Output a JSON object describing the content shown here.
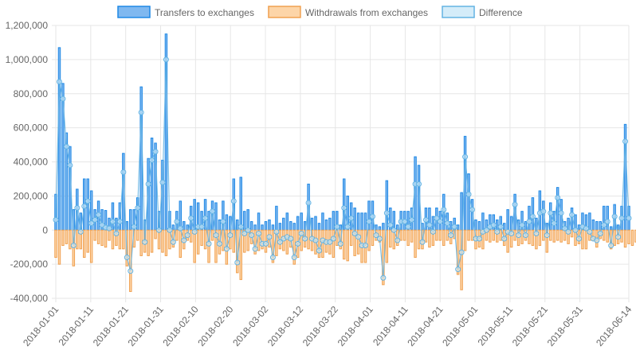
{
  "chart_data": {
    "type": "bar",
    "legend_position": "top",
    "grid": true,
    "ylim": [
      -400000,
      1200000
    ],
    "y_ticks": [
      1200000,
      1000000,
      800000,
      600000,
      400000,
      200000,
      0,
      -200000,
      -400000
    ],
    "y_tick_labels": [
      "1,200,000",
      "1,000,000",
      "800,000",
      "600,000",
      "400,000",
      "200,000",
      "0",
      "-200,000",
      "-400,000"
    ],
    "x_tick_labels": [
      "2018-01-01",
      "2018-01-11",
      "2018-01-21",
      "2018-01-31",
      "2018-02-10",
      "2018-02-20",
      "2018-03-02",
      "2018-03-12",
      "2018-03-22",
      "2018-04-01",
      "2018-04-11",
      "2018-04-21",
      "2018-05-01",
      "2018-05-11",
      "2018-05-21",
      "2018-05-31",
      "2018-06-14"
    ],
    "x_tick_days": [
      0,
      10,
      20,
      30,
      40,
      50,
      60,
      70,
      80,
      90,
      100,
      110,
      120,
      130,
      140,
      150,
      164
    ],
    "start_date": "2018-01-01",
    "end_date": "2018-06-14",
    "series": [
      {
        "name": "Transfers to exchanges",
        "color": "#1e88e5",
        "fill": "#7fb8f0",
        "values": [
          210000,
          1070000,
          860000,
          570000,
          490000,
          120000,
          240000,
          100000,
          300000,
          300000,
          230000,
          120000,
          170000,
          120000,
          115000,
          70000,
          160000,
          70000,
          160000,
          450000,
          50000,
          120000,
          120000,
          190000,
          840000,
          60000,
          420000,
          540000,
          510000,
          110000,
          410000,
          1150000,
          110000,
          30000,
          110000,
          170000,
          50000,
          30000,
          140000,
          180000,
          160000,
          110000,
          180000,
          110000,
          170000,
          160000,
          60000,
          170000,
          90000,
          80000,
          300000,
          60000,
          310000,
          110000,
          120000,
          50000,
          30000,
          100000,
          30000,
          50000,
          60000,
          30000,
          140000,
          40000,
          70000,
          100000,
          50000,
          40000,
          80000,
          100000,
          50000,
          270000,
          70000,
          80000,
          40000,
          100000,
          60000,
          70000,
          110000,
          110000,
          30000,
          300000,
          200000,
          160000,
          130000,
          100000,
          100000,
          100000,
          170000,
          170000,
          30000,
          20000,
          40000,
          290000,
          130000,
          110000,
          30000,
          110000,
          110000,
          110000,
          130000,
          430000,
          380000,
          40000,
          130000,
          130000,
          80000,
          130000,
          110000,
          210000,
          100000,
          50000,
          70000,
          30000,
          220000,
          550000,
          330000,
          180000,
          60000,
          50000,
          100000,
          60000,
          90000,
          90000,
          60000,
          80000,
          40000,
          120000,
          80000,
          210000,
          60000,
          110000,
          50000,
          140000,
          190000,
          70000,
          230000,
          170000,
          40000,
          160000,
          110000,
          250000,
          180000,
          50000,
          70000,
          130000,
          90000,
          30000,
          100000,
          90000,
          100000,
          60000,
          50000,
          50000,
          140000,
          140000,
          20000,
          150000,
          30000,
          140000,
          620000,
          140000
        ]
      },
      {
        "name": "Withdrawals from exchanges",
        "color": "#f0a050",
        "fill": "#fdd5a8",
        "values": [
          -160000,
          -200000,
          -90000,
          -80000,
          -110000,
          -210000,
          -110000,
          -110000,
          -160000,
          -130000,
          -190000,
          -60000,
          -80000,
          -90000,
          -100000,
          -60000,
          -110000,
          -90000,
          -110000,
          -110000,
          -210000,
          -360000,
          -100000,
          -60000,
          -150000,
          -130000,
          -150000,
          -130000,
          -50000,
          -110000,
          -130000,
          -150000,
          -110000,
          -100000,
          -60000,
          -160000,
          -110000,
          -60000,
          -70000,
          -190000,
          -140000,
          -90000,
          -110000,
          -190000,
          -60000,
          -190000,
          -140000,
          -120000,
          -200000,
          -110000,
          -130000,
          -250000,
          -290000,
          -130000,
          -120000,
          -80000,
          -140000,
          -120000,
          -110000,
          -130000,
          -100000,
          -190000,
          -150000,
          -110000,
          -120000,
          -140000,
          -100000,
          -200000,
          -160000,
          -120000,
          -100000,
          -110000,
          -120000,
          -140000,
          -160000,
          -160000,
          -130000,
          -140000,
          -160000,
          -90000,
          -110000,
          -170000,
          -180000,
          -90000,
          -150000,
          -140000,
          -190000,
          -190000,
          -120000,
          -90000,
          -60000,
          -70000,
          -320000,
          -190000,
          -100000,
          -110000,
          -90000,
          -60000,
          -60000,
          -90000,
          -70000,
          -160000,
          -110000,
          -110000,
          -70000,
          -100000,
          -90000,
          -60000,
          -60000,
          -90000,
          -60000,
          -80000,
          -50000,
          -260000,
          -350000,
          -120000,
          -60000,
          -60000,
          -110000,
          -100000,
          -110000,
          -60000,
          -70000,
          -60000,
          -70000,
          -60000,
          -90000,
          -130000,
          -100000,
          -60000,
          -90000,
          -80000,
          -60000,
          -80000,
          -90000,
          -110000,
          -90000,
          -60000,
          -130000,
          -60000,
          -70000,
          -60000,
          -70000,
          -60000,
          -80000,
          -40000,
          -90000,
          -80000,
          -110000,
          -110000,
          -60000,
          -60000,
          -100000,
          -50000,
          -60000,
          -70000,
          -110000,
          -90000,
          -80000,
          -70000,
          -100000,
          -80000,
          -90000,
          -70000,
          -70000,
          -70000
        ]
      },
      {
        "name": "Difference",
        "color": "#63b3e3",
        "fill": "#d4ecf9",
        "values": [
          60000,
          870000,
          770000,
          490000,
          380000,
          -90000,
          130000,
          -10000,
          140000,
          170000,
          40000,
          60000,
          90000,
          30000,
          15000,
          10000,
          50000,
          -20000,
          50000,
          340000,
          -160000,
          -240000,
          20000,
          130000,
          690000,
          -70000,
          270000,
          410000,
          460000,
          0,
          280000,
          1000000,
          0,
          -70000,
          50000,
          10000,
          -60000,
          -30000,
          70000,
          -10000,
          20000,
          20000,
          70000,
          -80000,
          110000,
          -30000,
          -80000,
          50000,
          -110000,
          -30000,
          170000,
          -190000,
          20000,
          -20000,
          0,
          -30000,
          -110000,
          -20000,
          -80000,
          -80000,
          -40000,
          -160000,
          -10000,
          -70000,
          -50000,
          -40000,
          -50000,
          -160000,
          -80000,
          -20000,
          -50000,
          160000,
          -50000,
          -60000,
          -120000,
          -60000,
          -70000,
          -70000,
          -50000,
          20000,
          -80000,
          130000,
          20000,
          70000,
          -20000,
          -40000,
          -90000,
          -90000,
          50000,
          80000,
          -30000,
          -50000,
          -280000,
          100000,
          30000,
          0,
          -60000,
          50000,
          50000,
          20000,
          60000,
          270000,
          270000,
          -70000,
          60000,
          30000,
          -10000,
          70000,
          50000,
          120000,
          40000,
          -30000,
          20000,
          -230000,
          -130000,
          430000,
          210000,
          120000,
          -50000,
          -50000,
          -10000,
          0,
          20000,
          30000,
          -10000,
          20000,
          -50000,
          -10000,
          -20000,
          150000,
          -30000,
          30000,
          -30000,
          50000,
          80000,
          -20000,
          100000,
          110000,
          -30000,
          100000,
          40000,
          190000,
          100000,
          10000,
          -10000,
          90000,
          0,
          -50000,
          20000,
          10000,
          -10000,
          -50000,
          -60000,
          -20000,
          30000,
          50000,
          -90000,
          80000,
          -40000,
          70000,
          520000,
          70000
        ]
      }
    ]
  }
}
